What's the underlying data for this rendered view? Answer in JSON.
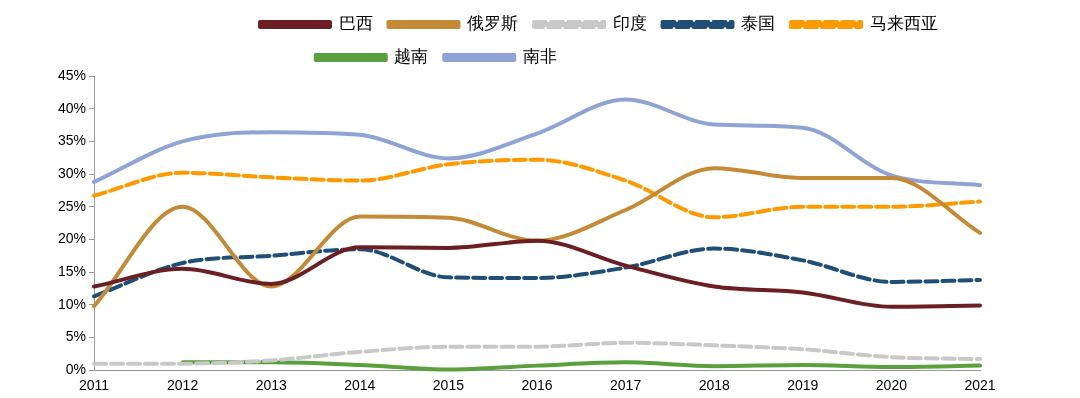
{
  "chart_data": {
    "type": "line",
    "categories": [
      "2011",
      "2012",
      "2013",
      "2014",
      "2015",
      "2016",
      "2017",
      "2018",
      "2019",
      "2020",
      "2021"
    ],
    "ylim": [
      0,
      45
    ],
    "yticks": [
      {
        "value": 0,
        "label": "0%"
      },
      {
        "value": 5,
        "label": "5%"
      },
      {
        "value": 10,
        "label": "10%"
      },
      {
        "value": 15,
        "label": "15%"
      },
      {
        "value": 20,
        "label": "20%"
      },
      {
        "value": 25,
        "label": "25%"
      },
      {
        "value": 30,
        "label": "30%"
      },
      {
        "value": 35,
        "label": "35%"
      },
      {
        "value": 40,
        "label": "40%"
      },
      {
        "value": 45,
        "label": "45%"
      }
    ],
    "grid": false,
    "legend": "top",
    "marker": "none",
    "series": [
      {
        "name": "巴西",
        "color": "#6b1f24",
        "line_style": "solid",
        "values": [
          12.8,
          15.5,
          13.2,
          18.8,
          18.7,
          19.8,
          16,
          12.8,
          11.9,
          9.7,
          9.9
        ]
      },
      {
        "name": "俄罗斯",
        "color": "#c48a35",
        "line_style": "solid",
        "values": [
          9.8,
          25,
          12.8,
          23.5,
          23.3,
          19.8,
          24.5,
          30.9,
          29.4,
          29.4,
          21
        ]
      },
      {
        "name": "印度",
        "color": "#c8c8c8",
        "line_style": "dashed",
        "values": [
          1,
          1,
          1.5,
          2.8,
          3.6,
          3.6,
          4.2,
          3.8,
          3.2,
          2,
          1.7
        ]
      },
      {
        "name": "泰国",
        "color": "#1f4e79",
        "line_style": "dashed",
        "values": [
          11.3,
          16.4,
          17.5,
          18.5,
          14.2,
          14.1,
          15.7,
          18.6,
          16.8,
          13.5,
          13.8
        ]
      },
      {
        "name": "马来西亚",
        "color": "#ff9900",
        "line_style": "dashed",
        "values": [
          26.7,
          30.2,
          29.5,
          29,
          31.5,
          32.2,
          29,
          23.4,
          25,
          25,
          25.8
        ]
      },
      {
        "name": "越南",
        "color": "#5aa03c",
        "line_style": "solid",
        "values": [
          null,
          1.2,
          1.2,
          0.8,
          0.1,
          0.7,
          1.2,
          0.6,
          0.8,
          0.5,
          0.7
        ]
      },
      {
        "name": "南非",
        "color": "#8fa3d6",
        "line_style": "solid",
        "values": [
          28.8,
          35,
          36.4,
          36,
          32.4,
          36.2,
          41.4,
          37.6,
          37.1,
          29.8,
          28.3
        ]
      }
    ]
  }
}
